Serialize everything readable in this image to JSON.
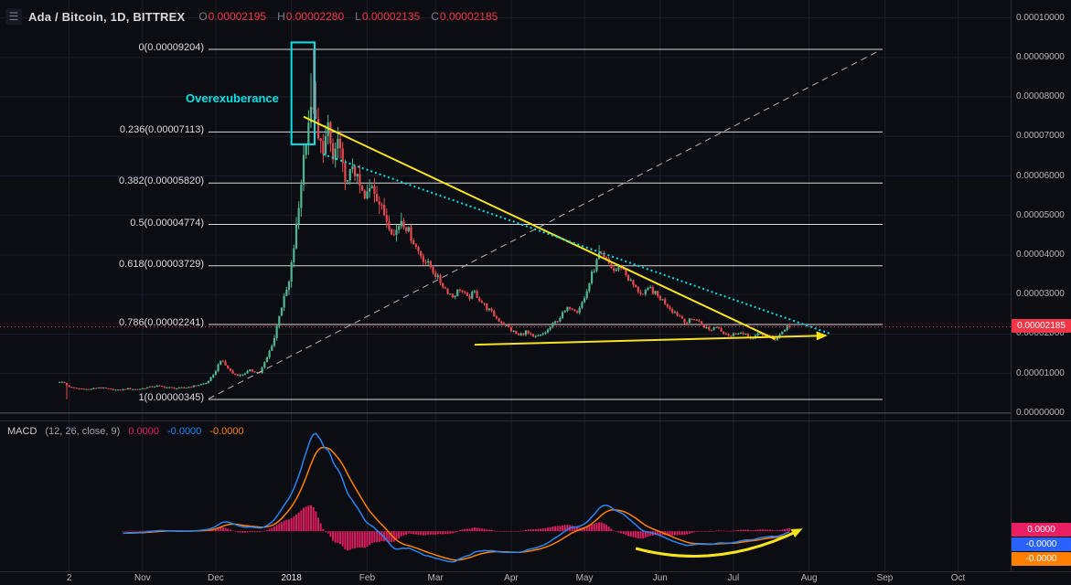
{
  "header": {
    "symbol_title": "Ada / Bitcoin, 1D, BITTREX",
    "ohlc": [
      {
        "label": "O",
        "value": "0.00002195"
      },
      {
        "label": "H",
        "value": "0.00002280"
      },
      {
        "label": "L",
        "value": "0.00002135"
      },
      {
        "label": "C",
        "value": "0.00002185"
      }
    ]
  },
  "annotations": {
    "overexuberance": "Overexuberance"
  },
  "colors": {
    "background": "#0c0d12",
    "grid": "#1b1f2b",
    "axis_text": "#b2b5be",
    "fib_line": "#e8e9ed",
    "up_candle": "#53b591",
    "down_candle": "#e8494f",
    "trend_yellow": "#f7e31c",
    "trend_cyan": "#00e1e6",
    "trend_dashed": "#aeb3c2",
    "current_price_bg": "#f23645",
    "macd_hist": "#e91e63",
    "macd_line": "#2984f5",
    "macd_signal": "#ff8000",
    "separator": "#2a2e39"
  },
  "current_price": {
    "label": "0.00002185",
    "value_e8": 2185
  },
  "price_axis_ticks": [
    "0.00010000",
    "0.00009000",
    "0.00008000",
    "0.00007000",
    "0.00006000",
    "0.00005000",
    "0.00004000",
    "0.00003000",
    "0.00002000",
    "0.00001000",
    "0.00000000"
  ],
  "time_axis": [
    {
      "text": "2",
      "day": 4
    },
    {
      "text": "Nov",
      "day": 34
    },
    {
      "text": "Dec",
      "day": 64
    },
    {
      "text": "2018",
      "day": 95,
      "emphasis": true
    },
    {
      "text": "Feb",
      "day": 126
    },
    {
      "text": "Mar",
      "day": 154
    },
    {
      "text": "Apr",
      "day": 185
    },
    {
      "text": "May",
      "day": 215
    },
    {
      "text": "Jun",
      "day": 246
    },
    {
      "text": "Jul",
      "day": 276
    },
    {
      "text": "Aug",
      "day": 307
    },
    {
      "text": "Sep",
      "day": 338
    },
    {
      "text": "Oct",
      "day": 368
    }
  ],
  "macd": {
    "title": "MACD",
    "params": "(12, 26, close, 9)",
    "fast": 12,
    "slow": 26,
    "source": "close",
    "smoothing": 9,
    "values": [
      {
        "value": "0.0000",
        "color": "#e91e63"
      },
      {
        "value": "-0.0000",
        "color": "#2984f5"
      },
      {
        "value": "-0.0000",
        "color": "#ff8000"
      }
    ],
    "badges": [
      {
        "value": "0.0000",
        "bg": "#e91e63"
      },
      {
        "value": "-0.0000",
        "bg": "#2962ff"
      },
      {
        "value": "-0.0000",
        "bg": "#ff8000"
      }
    ]
  },
  "chart_data": {
    "type": "candlestick",
    "title": "Ada / Bitcoin, 1D, BITTREX",
    "interval": "1D",
    "exchange": "BITTREX",
    "price_unit": "BTC",
    "ylim_e8": [
      0,
      10400
    ],
    "current_ohlc_e8": {
      "open": 2195,
      "high": 2280,
      "low": 2135,
      "close": 2185
    },
    "fib_levels": [
      {
        "label": "0(0.00009204)",
        "ratio": 0,
        "price_e8": 9204
      },
      {
        "label": "0.236(0.00007113)",
        "ratio": 0.236,
        "price_e8": 7113
      },
      {
        "label": "0.382(0.00005820)",
        "ratio": 0.382,
        "price_e8": 5820
      },
      {
        "label": "0.5(0.00004774)",
        "ratio": 0.5,
        "price_e8": 4774
      },
      {
        "label": "0.618(0.00003729)",
        "ratio": 0.618,
        "price_e8": 3729
      },
      {
        "label": "0.786(0.00002241)",
        "ratio": 0.786,
        "price_e8": 2241
      },
      {
        "label": "1(0.00000345)",
        "ratio": 1,
        "price_e8": 345
      }
    ],
    "price_anchors_e8": [
      [
        0,
        800
      ],
      [
        2,
        760
      ],
      [
        3,
        700
      ],
      [
        5,
        640
      ],
      [
        8,
        620
      ],
      [
        12,
        600
      ],
      [
        16,
        650
      ],
      [
        20,
        610
      ],
      [
        24,
        580
      ],
      [
        28,
        620
      ],
      [
        32,
        600
      ],
      [
        36,
        650
      ],
      [
        40,
        690
      ],
      [
        44,
        650
      ],
      [
        48,
        630
      ],
      [
        52,
        650
      ],
      [
        56,
        700
      ],
      [
        60,
        760
      ],
      [
        63,
        950
      ],
      [
        66,
        1350
      ],
      [
        68,
        1200
      ],
      [
        71,
        1000
      ],
      [
        74,
        950
      ],
      [
        78,
        1080
      ],
      [
        82,
        1020
      ],
      [
        85,
        1400
      ],
      [
        88,
        1900
      ],
      [
        90,
        2500
      ],
      [
        92,
        2900
      ],
      [
        94,
        3300
      ],
      [
        96,
        4200
      ],
      [
        98,
        5200
      ],
      [
        100,
        6500
      ],
      [
        102,
        7400
      ],
      [
        104,
        7800
      ],
      [
        105,
        7300
      ],
      [
        106,
        6900
      ],
      [
        108,
        6700
      ],
      [
        110,
        7200
      ],
      [
        112,
        6400
      ],
      [
        114,
        6900
      ],
      [
        116,
        6200
      ],
      [
        118,
        5800
      ],
      [
        120,
        6300
      ],
      [
        122,
        5900
      ],
      [
        125,
        5400
      ],
      [
        128,
        5800
      ],
      [
        131,
        5300
      ],
      [
        134,
        4900
      ],
      [
        137,
        4500
      ],
      [
        140,
        4900
      ],
      [
        143,
        4600
      ],
      [
        146,
        4200
      ],
      [
        149,
        3900
      ],
      [
        152,
        3700
      ],
      [
        155,
        3400
      ],
      [
        158,
        3150
      ],
      [
        161,
        2950
      ],
      [
        164,
        3150
      ],
      [
        167,
        2900
      ],
      [
        170,
        3050
      ],
      [
        173,
        2800
      ],
      [
        176,
        2600
      ],
      [
        179,
        2400
      ],
      [
        182,
        2250
      ],
      [
        185,
        2100
      ],
      [
        188,
        1960
      ],
      [
        191,
        2060
      ],
      [
        194,
        1900
      ],
      [
        197,
        1960
      ],
      [
        200,
        2100
      ],
      [
        203,
        2300
      ],
      [
        206,
        2500
      ],
      [
        209,
        2700
      ],
      [
        212,
        2600
      ],
      [
        215,
        2900
      ],
      [
        218,
        3500
      ],
      [
        221,
        4000
      ],
      [
        224,
        3850
      ],
      [
        227,
        3600
      ],
      [
        230,
        3720
      ],
      [
        233,
        3400
      ],
      [
        236,
        3150
      ],
      [
        239,
        3000
      ],
      [
        242,
        3150
      ],
      [
        245,
        2950
      ],
      [
        248,
        2800
      ],
      [
        251,
        2600
      ],
      [
        254,
        2450
      ],
      [
        257,
        2300
      ],
      [
        260,
        2400
      ],
      [
        263,
        2250
      ],
      [
        266,
        2100
      ],
      [
        269,
        2200
      ],
      [
        272,
        2050
      ],
      [
        275,
        1950
      ],
      [
        278,
        2060
      ],
      [
        281,
        1960
      ],
      [
        284,
        1900
      ],
      [
        287,
        2010
      ],
      [
        290,
        1950
      ],
      [
        293,
        1880
      ],
      [
        296,
        2060
      ],
      [
        298,
        2190
      ],
      [
        299,
        2185
      ]
    ],
    "wick_overrides_e8": {
      "3": {
        "low": 350
      },
      "103": {
        "high": 8600
      },
      "104": {
        "high": 9204
      },
      "105": {
        "high": 8400
      },
      "221": {
        "high": 4250
      }
    },
    "last_candle_e8": {
      "open": 2195,
      "high": 2280,
      "low": 2135,
      "close": 2185
    },
    "trendlines": [
      {
        "name": "downtrend-yellow",
        "color": "#f7e31c",
        "style": "solid",
        "width": 2,
        "from": {
          "day": 100,
          "price_e8": 7500
        },
        "to": {
          "day": 293,
          "price_e8": 1870
        },
        "arrow_end": false
      },
      {
        "name": "support-yellow",
        "color": "#f7e31c",
        "style": "solid",
        "width": 2,
        "from": {
          "day": 170,
          "price_e8": 1730
        },
        "to": {
          "day": 313,
          "price_e8": 1960
        },
        "arrow_end": true
      },
      {
        "name": "downtrend-cyan-dotted",
        "color": "#00e1e6",
        "style": "dotted",
        "width": 2,
        "from": {
          "day": 108,
          "price_e8": 6550
        },
        "to": {
          "day": 316,
          "price_e8": 2000
        },
        "arrow_end": false
      },
      {
        "name": "uptrend-dashed",
        "color": "#aeb3c2",
        "style": "dashed",
        "width": 1,
        "from": {
          "day": 61,
          "price_e8": 360
        },
        "to": {
          "day": 336,
          "price_e8": 9180
        },
        "arrow_end": false
      }
    ],
    "highlight_box": {
      "from_day": 95,
      "to_day": 104.5,
      "top_e8": 9380,
      "bottom_e8": 6800,
      "color": "#00e1e6"
    },
    "macd_arrow": {
      "from_day": 236,
      "to_day": 303,
      "color": "#f7e31c"
    }
  }
}
